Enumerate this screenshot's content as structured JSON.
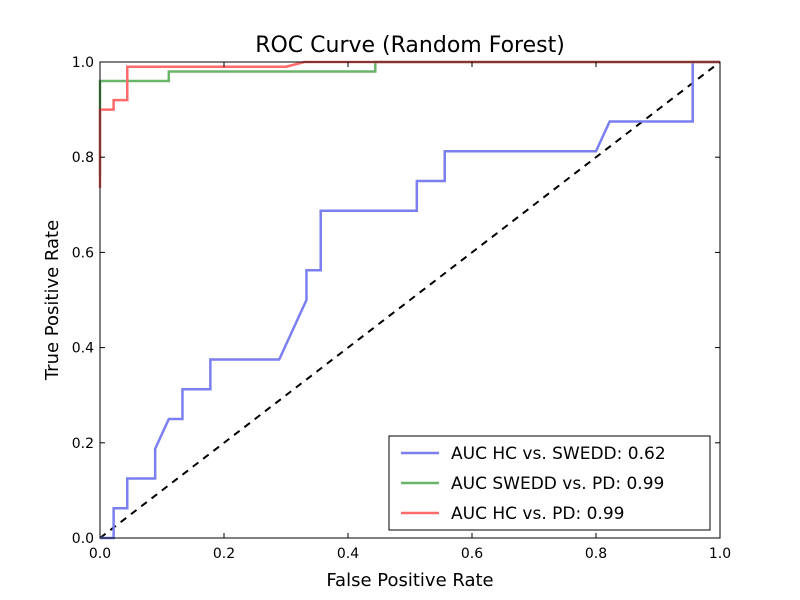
{
  "chart_data": {
    "type": "line",
    "title": "ROC Curve (Random Forest)",
    "xlabel": "False Positive Rate",
    "ylabel": "True Positive Rate",
    "xlim": [
      0.0,
      1.0
    ],
    "ylim": [
      0.0,
      1.0
    ],
    "x_ticks": [
      "0.0",
      "0.2",
      "0.4",
      "0.6",
      "0.8",
      "1.0"
    ],
    "y_ticks": [
      "0.0",
      "0.2",
      "0.4",
      "0.6",
      "0.8",
      "1.0"
    ],
    "legend_position": "lower-right",
    "grid": false,
    "series": [
      {
        "name": "AUC HC vs. SWEDD: 0.62",
        "color": "#7b7ff0",
        "points": [
          [
            0.0,
            0.0
          ],
          [
            0.022,
            0.0
          ],
          [
            0.022,
            0.0625
          ],
          [
            0.044,
            0.0625
          ],
          [
            0.044,
            0.125
          ],
          [
            0.089,
            0.125
          ],
          [
            0.089,
            0.1875
          ],
          [
            0.111,
            0.25
          ],
          [
            0.133,
            0.25
          ],
          [
            0.133,
            0.3125
          ],
          [
            0.178,
            0.3125
          ],
          [
            0.178,
            0.375
          ],
          [
            0.289,
            0.375
          ],
          [
            0.333,
            0.5
          ],
          [
            0.333,
            0.5625
          ],
          [
            0.356,
            0.5625
          ],
          [
            0.356,
            0.6875
          ],
          [
            0.511,
            0.6875
          ],
          [
            0.511,
            0.75
          ],
          [
            0.556,
            0.75
          ],
          [
            0.556,
            0.8125
          ],
          [
            0.8,
            0.8125
          ],
          [
            0.822,
            0.875
          ],
          [
            0.956,
            0.875
          ],
          [
            0.956,
            1.0
          ],
          [
            1.0,
            1.0
          ]
        ]
      },
      {
        "name": "AUC SWEDD vs. PD: 0.99",
        "color": "#6ab56a",
        "points": [
          [
            0.0,
            0.76
          ],
          [
            0.0,
            0.96
          ],
          [
            0.111,
            0.96
          ],
          [
            0.111,
            0.98
          ],
          [
            0.444,
            0.98
          ],
          [
            0.444,
            1.0
          ],
          [
            1.0,
            1.0
          ]
        ]
      },
      {
        "name": "AUC HC vs. PD: 0.99",
        "color": "#ff6b6b",
        "points": [
          [
            0.0,
            0.735
          ],
          [
            0.0,
            0.9
          ],
          [
            0.022,
            0.9
          ],
          [
            0.022,
            0.92
          ],
          [
            0.044,
            0.92
          ],
          [
            0.044,
            0.99
          ],
          [
            0.3,
            0.99
          ],
          [
            0.33,
            1.0
          ],
          [
            1.0,
            1.0
          ]
        ]
      }
    ],
    "reference_line": {
      "style": "dashed",
      "color": "#000000",
      "points": [
        [
          0.0,
          0.0
        ],
        [
          1.0,
          1.0
        ]
      ]
    }
  }
}
